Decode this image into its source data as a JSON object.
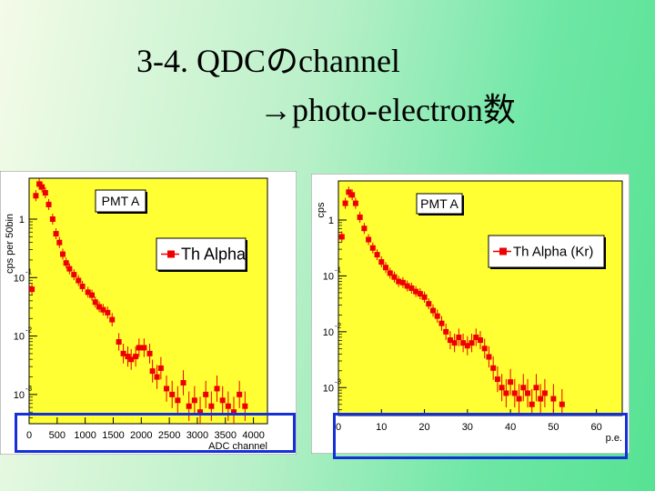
{
  "slide": {
    "title_line1": "3-4. QDCのchannel",
    "title_line2": "→photo-electron数"
  },
  "colors": {
    "plot_bg": "#ffff33",
    "frame_bg": "#ffffff",
    "marker": "#ee0000",
    "highlight": "#1430d8"
  },
  "chart_data": [
    {
      "type": "scatter",
      "title": "PMT A",
      "legend": [
        "Th Alpha"
      ],
      "legend_position": "top-right",
      "ylabel": "cps per 50bin",
      "xlabel": "ADC channel",
      "x_ticks": [
        "0",
        "500",
        "1000",
        "1500",
        "2000",
        "2500",
        "3000",
        "3500",
        "4000"
      ],
      "y_ticks": [
        {
          "base": "1",
          "exp": ""
        },
        {
          "base": "10",
          "exp": "-1"
        },
        {
          "base": "10",
          "exp": "-2"
        },
        {
          "base": "10",
          "exp": "-3"
        }
      ],
      "xlim": [
        0,
        4250
      ],
      "ylim_log10": [
        -3.5,
        0.7
      ],
      "y_scale": "log",
      "series": [
        {
          "points": [
            [
              50,
              -1.2
            ],
            [
              120,
              0.4
            ],
            [
              180,
              0.6
            ],
            [
              230,
              0.55
            ],
            [
              290,
              0.45
            ],
            [
              350,
              0.25
            ],
            [
              420,
              0.0
            ],
            [
              480,
              -0.25
            ],
            [
              540,
              -0.4
            ],
            [
              600,
              -0.6
            ],
            [
              660,
              -0.75
            ],
            [
              720,
              -0.85
            ],
            [
              800,
              -0.95
            ],
            [
              880,
              -1.05
            ],
            [
              950,
              -1.15
            ],
            [
              1050,
              -1.25
            ],
            [
              1120,
              -1.3
            ],
            [
              1180,
              -1.42
            ],
            [
              1250,
              -1.5
            ],
            [
              1320,
              -1.55
            ],
            [
              1400,
              -1.6
            ],
            [
              1480,
              -1.72
            ],
            [
              1600,
              -2.1
            ],
            [
              1680,
              -2.3
            ],
            [
              1760,
              -2.35
            ],
            [
              1820,
              -2.4
            ],
            [
              1900,
              -2.35
            ],
            [
              1960,
              -2.2
            ],
            [
              2050,
              -2.2
            ],
            [
              2150,
              -2.3
            ],
            [
              2200,
              -2.6
            ],
            [
              2280,
              -2.7
            ],
            [
              2350,
              -2.55
            ],
            [
              2450,
              -2.9
            ],
            [
              2550,
              -3.0
            ],
            [
              2650,
              -3.1
            ],
            [
              2750,
              -2.8
            ],
            [
              2850,
              -3.2
            ],
            [
              2950,
              -3.1
            ],
            [
              3050,
              -3.3
            ],
            [
              3150,
              -3.0
            ],
            [
              3250,
              -3.2
            ],
            [
              3350,
              -2.9
            ],
            [
              3450,
              -3.1
            ],
            [
              3550,
              -3.2
            ],
            [
              3650,
              -3.3
            ],
            [
              3750,
              -3.0
            ],
            [
              3850,
              -3.2
            ]
          ]
        }
      ]
    },
    {
      "type": "scatter",
      "title": "PMT A",
      "legend": [
        "Th Alpha (Kr)"
      ],
      "legend_position": "top-right",
      "ylabel": "cps",
      "xlabel": "p.e.",
      "x_ticks": [
        "0",
        "10",
        "20",
        "30",
        "40",
        "50",
        "60"
      ],
      "y_ticks": [
        {
          "base": "1",
          "exp": ""
        },
        {
          "base": "10",
          "exp": "-1"
        },
        {
          "base": "10",
          "exp": "-2"
        },
        {
          "base": "10",
          "exp": "-3"
        }
      ],
      "xlim": [
        0,
        66
      ],
      "ylim_log10": [
        -3.5,
        0.7
      ],
      "y_scale": "log",
      "series": [
        {
          "points": [
            [
              0.8,
              -0.3
            ],
            [
              1.6,
              0.3
            ],
            [
              2.4,
              0.5
            ],
            [
              3.2,
              0.45
            ],
            [
              4.0,
              0.3
            ],
            [
              5.0,
              0.05
            ],
            [
              6.0,
              -0.15
            ],
            [
              7.0,
              -0.35
            ],
            [
              8.0,
              -0.5
            ],
            [
              9.0,
              -0.62
            ],
            [
              10.0,
              -0.75
            ],
            [
              11.0,
              -0.85
            ],
            [
              12.0,
              -0.95
            ],
            [
              13.0,
              -1.02
            ],
            [
              14.0,
              -1.1
            ],
            [
              15.0,
              -1.12
            ],
            [
              16.0,
              -1.18
            ],
            [
              17.0,
              -1.22
            ],
            [
              18.0,
              -1.28
            ],
            [
              19.0,
              -1.32
            ],
            [
              20.0,
              -1.38
            ],
            [
              21.0,
              -1.5
            ],
            [
              22.0,
              -1.62
            ],
            [
              23.0,
              -1.72
            ],
            [
              24.0,
              -1.85
            ],
            [
              25.0,
              -2.0
            ],
            [
              26.0,
              -2.15
            ],
            [
              27.0,
              -2.2
            ],
            [
              28.0,
              -2.1
            ],
            [
              29.0,
              -2.2
            ],
            [
              30.0,
              -2.25
            ],
            [
              31.0,
              -2.2
            ],
            [
              32.0,
              -2.1
            ],
            [
              33.0,
              -2.15
            ],
            [
              34.0,
              -2.3
            ],
            [
              35.0,
              -2.45
            ],
            [
              36.0,
              -2.65
            ],
            [
              37.0,
              -2.85
            ],
            [
              38.0,
              -3.0
            ],
            [
              39.0,
              -3.1
            ],
            [
              40.0,
              -2.9
            ],
            [
              41.0,
              -3.1
            ],
            [
              42.0,
              -3.2
            ],
            [
              43.0,
              -3.0
            ],
            [
              44.0,
              -3.1
            ],
            [
              45.0,
              -3.3
            ],
            [
              46.0,
              -3.0
            ],
            [
              47.0,
              -3.2
            ],
            [
              48.0,
              -3.1
            ],
            [
              50.0,
              -3.2
            ],
            [
              52.0,
              -3.3
            ]
          ]
        }
      ]
    }
  ]
}
